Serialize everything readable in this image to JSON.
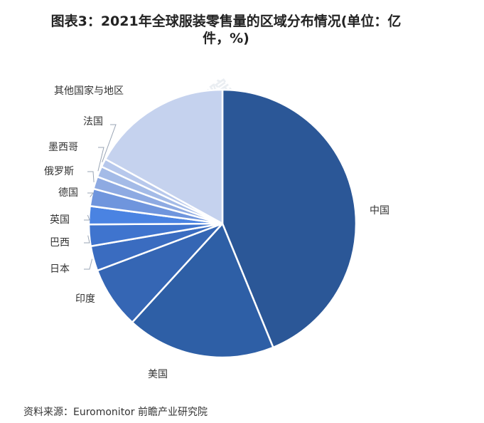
{
  "title": "图表3：2021年全球服装零售量的区域分布情况(单位：亿件，%)",
  "source": "资料来源：Euromonitor 前瞻产业研究院",
  "watermark": "前瞻产业研究院",
  "chart_data": {
    "type": "pie",
    "title": "图表3：2021年全球服装零售量的区域分布情况(单位：亿件，%)",
    "slices": [
      {
        "label": "中国",
        "value": 43.8,
        "color": "#2b5797"
      },
      {
        "label": "美国",
        "value": 18.0,
        "color": "#2e5fa6"
      },
      {
        "label": "印度",
        "value": 7.5,
        "color": "#3566b4"
      },
      {
        "label": "日本",
        "value": 3.0,
        "color": "#3a6cc0"
      },
      {
        "label": "巴西",
        "value": 2.6,
        "color": "#3f74ce"
      },
      {
        "label": "英国",
        "value": 2.2,
        "color": "#4a83e2"
      },
      {
        "label": "德国",
        "value": 2.1,
        "color": "#6f95dd"
      },
      {
        "label": "俄罗斯",
        "value": 1.5,
        "color": "#8eaae2"
      },
      {
        "label": "墨西哥",
        "value": 1.3,
        "color": "#a4bbe7"
      },
      {
        "label": "法国",
        "value": 1.0,
        "color": "#b7c8ec"
      },
      {
        "label": "其他国家与地区",
        "value": 17.0,
        "color": "#c5d2ee"
      }
    ],
    "start_angle_deg": 0,
    "direction": "clockwise",
    "legend": "none"
  }
}
